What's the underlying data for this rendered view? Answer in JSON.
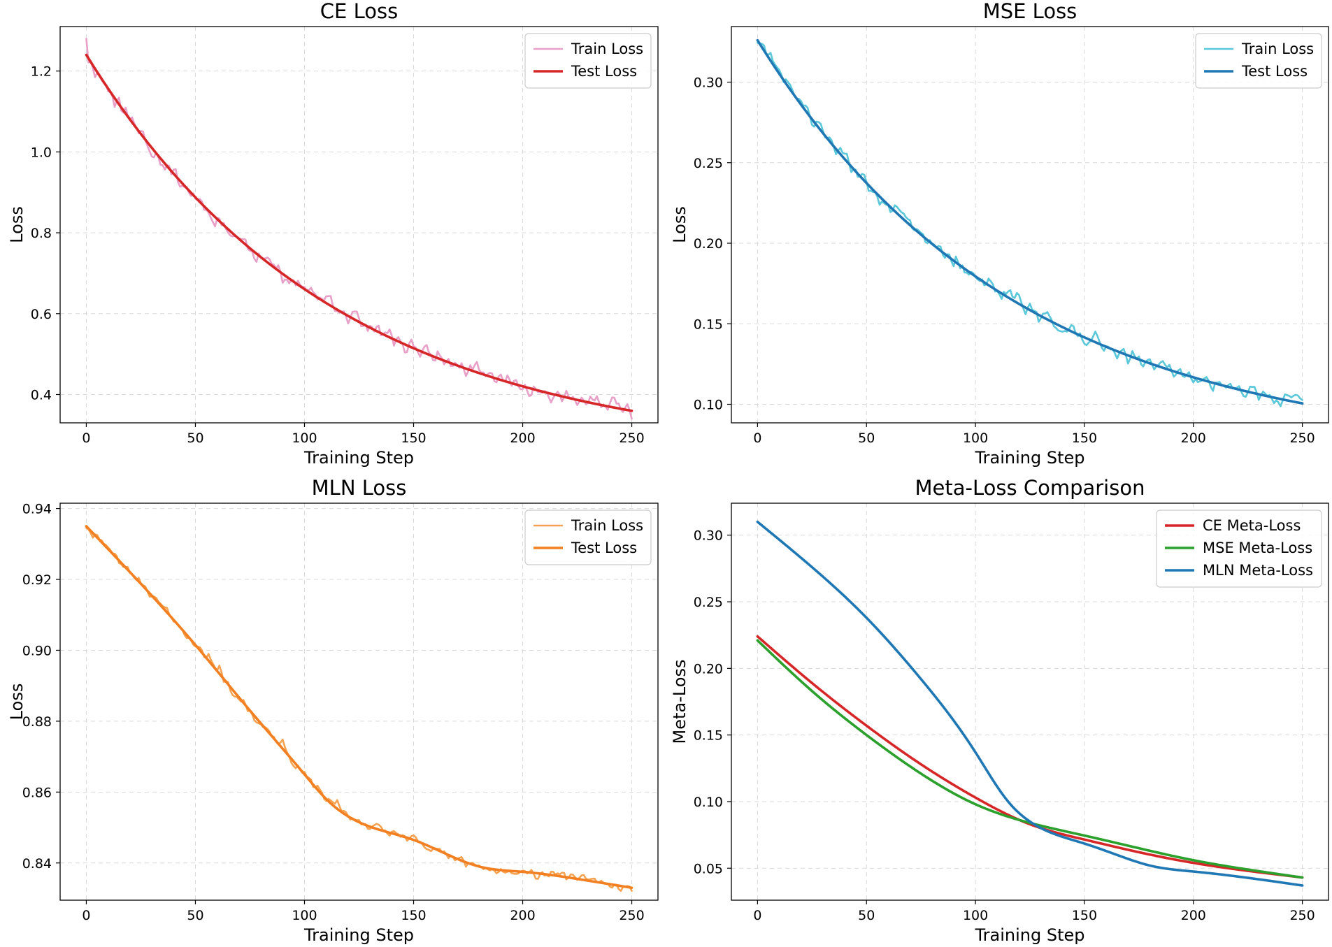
{
  "chart_data": [
    {
      "type": "line",
      "title": "CE Loss",
      "xlabel": "Training Step",
      "ylabel": "Loss",
      "xlim": [
        -12,
        262
      ],
      "ylim": [
        0.33,
        1.31
      ],
      "xticks": [
        0,
        50,
        100,
        150,
        200,
        250
      ],
      "xtick_labels": [
        "0",
        "50",
        "100",
        "150",
        "200",
        "250"
      ],
      "yticks": [
        0.4,
        0.6,
        0.8,
        1.0,
        1.2
      ],
      "ytick_labels": [
        "0.4",
        "0.6",
        "0.8",
        "1.0",
        "1.2"
      ],
      "grid": true,
      "legend_position": "top-right",
      "series": [
        {
          "name": "Train Loss",
          "color": "#e8a0c8",
          "kind": "noisy",
          "curve": {
            "model": "exp",
            "start": 1.24,
            "end": 0.25,
            "rate": 0.0088
          },
          "noise": {
            "amp": 0.026,
            "seed": 11
          },
          "first_value": 1.28
        },
        {
          "name": "Test Loss",
          "color": "#d62728",
          "kind": "smooth",
          "curve": {
            "model": "exp",
            "start": 1.24,
            "end": 0.25,
            "rate": 0.0088
          }
        }
      ]
    },
    {
      "type": "line",
      "title": "MSE Loss",
      "xlabel": "Training Step",
      "ylabel": "Loss",
      "xlim": [
        -12,
        262
      ],
      "ylim": [
        0.0885,
        0.3345
      ],
      "xticks": [
        0,
        50,
        100,
        150,
        200,
        250
      ],
      "xtick_labels": [
        "0",
        "50",
        "100",
        "150",
        "200",
        "250"
      ],
      "yticks": [
        0.1,
        0.15,
        0.2,
        0.25,
        0.3
      ],
      "ytick_labels": [
        "0.10",
        "0.15",
        "0.20",
        "0.25",
        "0.30"
      ],
      "grid": true,
      "legend_position": "top-right",
      "series": [
        {
          "name": "Train Loss",
          "color": "#5bc8d9",
          "kind": "noisy",
          "curve": {
            "model": "exp",
            "start": 0.326,
            "end": 0.07,
            "rate": 0.0085
          },
          "noise": {
            "amp": 0.0055,
            "seed": 29
          }
        },
        {
          "name": "Test Loss",
          "color": "#1f77b4",
          "kind": "smooth",
          "curve": {
            "model": "exp",
            "start": 0.326,
            "end": 0.07,
            "rate": 0.0085
          }
        }
      ]
    },
    {
      "type": "line",
      "title": "MLN Loss",
      "xlabel": "Training Step",
      "ylabel": "Loss",
      "xlim": [
        -12,
        262
      ],
      "ylim": [
        0.8295,
        0.9415
      ],
      "xticks": [
        0,
        50,
        100,
        150,
        200,
        250
      ],
      "xtick_labels": [
        "0",
        "50",
        "100",
        "150",
        "200",
        "250"
      ],
      "yticks": [
        0.84,
        0.86,
        0.88,
        0.9,
        0.92,
        0.94
      ],
      "ytick_labels": [
        "0.84",
        "0.86",
        "0.88",
        "0.90",
        "0.92",
        "0.94"
      ],
      "grid": true,
      "legend_position": "top-right",
      "series": [
        {
          "name": "Train Loss",
          "color": "#f5a352",
          "kind": "noisy",
          "curve": {
            "model": "spline",
            "x": [
              0,
              50,
              75,
              100,
              110,
              125,
              150,
              180,
              200,
              230,
              250
            ],
            "y": [
              0.935,
              0.9015,
              0.883,
              0.865,
              0.858,
              0.8515,
              0.8465,
              0.839,
              0.8375,
              0.835,
              0.833
            ]
          },
          "noise": {
            "amp": 0.00155,
            "seed": 7
          }
        },
        {
          "name": "Test Loss",
          "color": "#f28022",
          "kind": "smooth",
          "curve": {
            "model": "spline",
            "x": [
              0,
              50,
              75,
              100,
              110,
              125,
              150,
              180,
              200,
              230,
              250
            ],
            "y": [
              0.935,
              0.9015,
              0.883,
              0.865,
              0.858,
              0.8515,
              0.8465,
              0.839,
              0.8375,
              0.835,
              0.833
            ]
          }
        }
      ]
    },
    {
      "type": "line",
      "title": "Meta-Loss Comparison",
      "xlabel": "Training Step",
      "ylabel": "Meta-Loss",
      "xlim": [
        -12,
        262
      ],
      "ylim": [
        0.026,
        0.324
      ],
      "xticks": [
        0,
        50,
        100,
        150,
        200,
        250
      ],
      "xtick_labels": [
        "0",
        "50",
        "100",
        "150",
        "200",
        "250"
      ],
      "yticks": [
        0.05,
        0.1,
        0.15,
        0.2,
        0.25,
        0.3
      ],
      "ytick_labels": [
        "0.05",
        "0.10",
        "0.15",
        "0.20",
        "0.25",
        "0.30"
      ],
      "grid": true,
      "legend_position": "top-right",
      "series": [
        {
          "name": "CE Meta-Loss",
          "color": "#d62728",
          "kind": "smooth",
          "curve": {
            "model": "spline",
            "x": [
              0,
              25,
              50,
              75,
              100,
              125,
              150,
              175,
              200,
              225,
              250
            ],
            "y": [
              0.224,
              0.189,
              0.157,
              0.128,
              0.103,
              0.083,
              0.0715,
              0.062,
              0.054,
              0.048,
              0.043
            ]
          }
        },
        {
          "name": "MSE Meta-Loss",
          "color": "#2ca02c",
          "kind": "smooth",
          "curve": {
            "model": "spline",
            "x": [
              0,
              25,
              50,
              75,
              100,
              125,
              150,
              175,
              200,
              225,
              250
            ],
            "y": [
              0.221,
              0.183,
              0.15,
              0.121,
              0.098,
              0.084,
              0.0745,
              0.065,
              0.056,
              0.049,
              0.043
            ]
          }
        },
        {
          "name": "MLN Meta-Loss",
          "color": "#1f77b4",
          "kind": "smooth",
          "curve": {
            "model": "spline",
            "x": [
              0,
              25,
              50,
              75,
              100,
              115,
              125,
              150,
              170,
              180,
              200,
              250
            ],
            "y": [
              0.31,
              0.276,
              0.238,
              0.192,
              0.137,
              0.1,
              0.085,
              0.0685,
              0.057,
              0.052,
              0.0475,
              0.037
            ]
          }
        }
      ]
    }
  ]
}
